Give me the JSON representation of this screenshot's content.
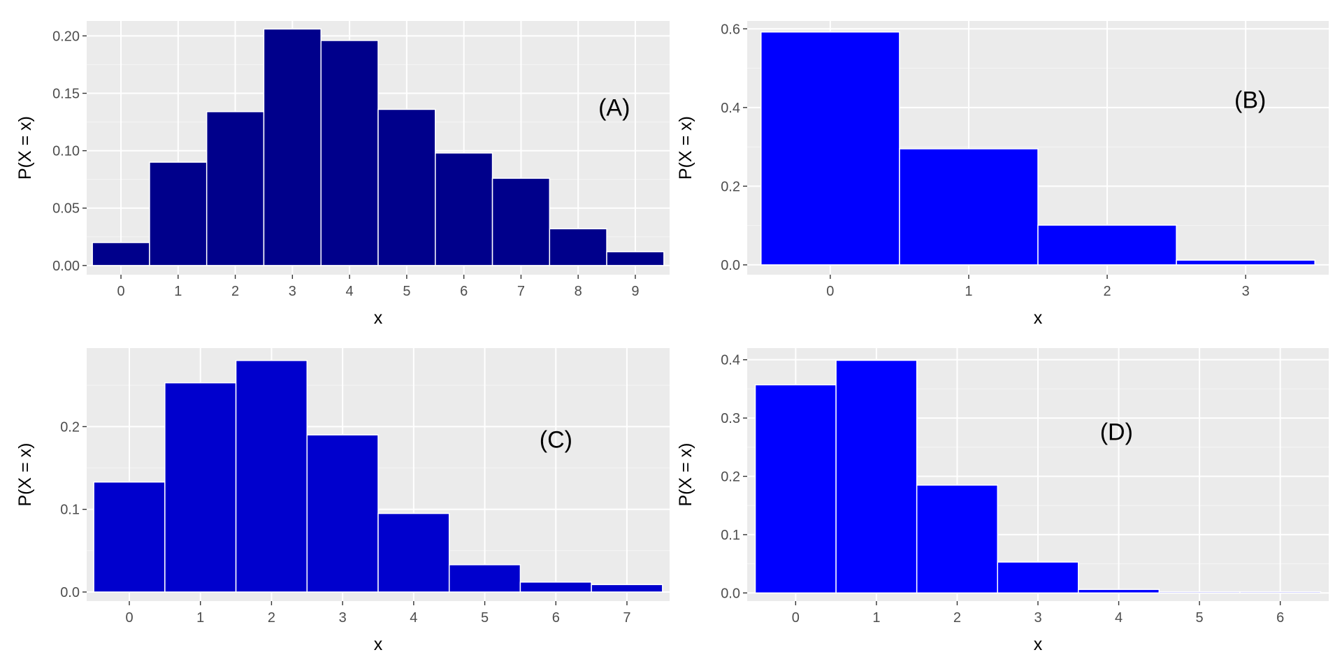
{
  "chart_data": [
    {
      "type": "bar",
      "panel_label": "(A)",
      "bar_color": "#00008B",
      "categories": [
        "0",
        "1",
        "2",
        "3",
        "4",
        "5",
        "6",
        "7",
        "8",
        "9"
      ],
      "values": [
        0.02,
        0.09,
        0.134,
        0.206,
        0.196,
        0.136,
        0.098,
        0.076,
        0.032,
        0.012
      ],
      "xlabel": "x",
      "ylabel": "P(X = x)",
      "ylim": [
        -0.008,
        0.213
      ],
      "yticks": [
        0.0,
        0.05,
        0.1,
        0.15,
        0.2
      ],
      "ytick_labels": [
        "0.00",
        "0.05",
        "0.10",
        "0.15",
        "0.20"
      ],
      "grid": true
    },
    {
      "type": "bar",
      "panel_label": "(B)",
      "bar_color": "#0000FF",
      "categories": [
        "0",
        "1",
        "2",
        "3"
      ],
      "values": [
        0.592,
        0.295,
        0.101,
        0.012
      ],
      "xlabel": "x",
      "ylabel": "P(X = x)",
      "ylim": [
        -0.025,
        0.62
      ],
      "yticks": [
        0.0,
        0.2,
        0.4,
        0.6
      ],
      "ytick_labels": [
        "0.0",
        "0.2",
        "0.4",
        "0.6"
      ],
      "grid": true
    },
    {
      "type": "bar",
      "panel_label": "(C)",
      "bar_color": "#0000CD",
      "categories": [
        "0",
        "1",
        "2",
        "3",
        "4",
        "5",
        "6",
        "7"
      ],
      "values": [
        0.133,
        0.253,
        0.28,
        0.19,
        0.095,
        0.033,
        0.012,
        0.009
      ],
      "xlabel": "x",
      "ylabel": "P(X = x)",
      "ylim": [
        -0.011,
        0.295
      ],
      "yticks": [
        0.0,
        0.1,
        0.2
      ],
      "ytick_labels": [
        "0.0",
        "0.1",
        "0.2"
      ],
      "grid": true
    },
    {
      "type": "bar",
      "panel_label": "(D)",
      "bar_color": "#0000FF",
      "categories": [
        "0",
        "1",
        "2",
        "3",
        "4",
        "5",
        "6"
      ],
      "values": [
        0.357,
        0.399,
        0.185,
        0.053,
        0.006,
        0.002,
        0.002
      ],
      "xlabel": "x",
      "ylabel": "P(X = x)",
      "ylim": [
        -0.014,
        0.42
      ],
      "yticks": [
        0.0,
        0.1,
        0.2,
        0.3,
        0.4
      ],
      "ytick_labels": [
        "0.0",
        "0.1",
        "0.2",
        "0.3",
        "0.4"
      ],
      "grid": true
    }
  ]
}
